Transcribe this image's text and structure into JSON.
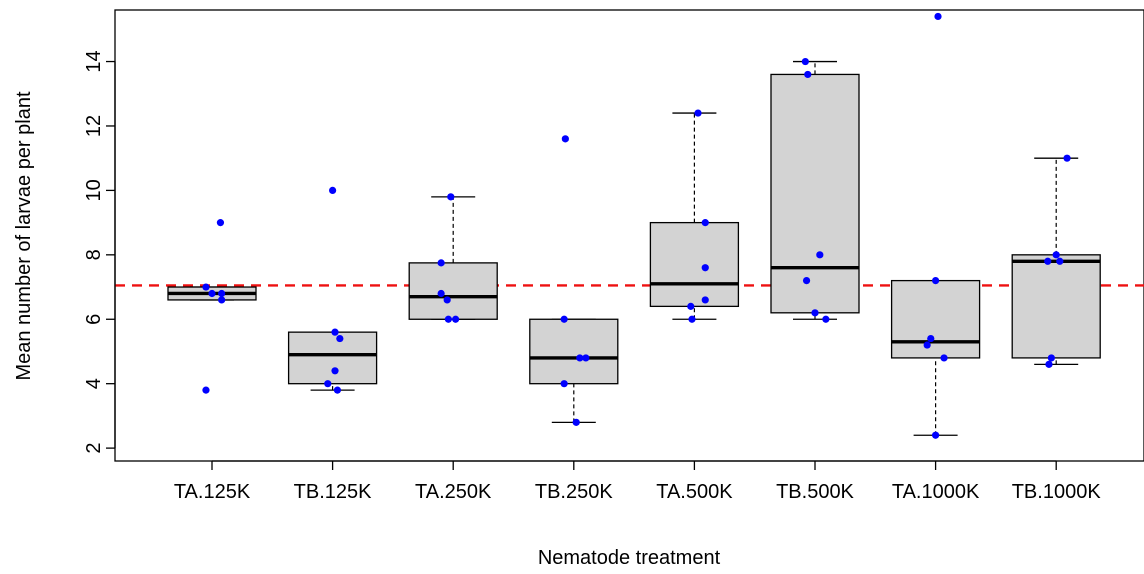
{
  "chart_data": {
    "type": "boxplot",
    "xlabel": "Nematode treatment",
    "ylabel": "Mean number of larvae per plant",
    "ylim": [
      1.6,
      15.6
    ],
    "yticks": [
      2,
      4,
      6,
      8,
      10,
      12,
      14
    ],
    "categories": [
      "TA.125K",
      "TB.125K",
      "TA.250K",
      "TB.250K",
      "TA.500K",
      "TB.500K",
      "TA.1000K",
      "TB.1000K"
    ],
    "boxes": [
      {
        "category": "TA.125K",
        "whisker_low": 6.6,
        "q1": 6.6,
        "median": 6.8,
        "q3": 7.0,
        "whisker_high": 7.0
      },
      {
        "category": "TB.125K",
        "whisker_low": 3.8,
        "q1": 4.0,
        "median": 4.9,
        "q3": 5.6,
        "whisker_high": 5.6
      },
      {
        "category": "TA.250K",
        "whisker_low": 6.0,
        "q1": 6.0,
        "median": 6.7,
        "q3": 7.75,
        "whisker_high": 9.8
      },
      {
        "category": "TB.250K",
        "whisker_low": 2.8,
        "q1": 4.0,
        "median": 4.8,
        "q3": 6.0,
        "whisker_high": 6.0
      },
      {
        "category": "TA.500K",
        "whisker_low": 6.0,
        "q1": 6.4,
        "median": 7.1,
        "q3": 9.0,
        "whisker_high": 12.4
      },
      {
        "category": "TB.500K",
        "whisker_low": 6.0,
        "q1": 6.2,
        "median": 7.6,
        "q3": 13.6,
        "whisker_high": 14.0
      },
      {
        "category": "TA.1000K",
        "whisker_low": 2.4,
        "q1": 4.8,
        "median": 5.3,
        "q3": 7.2,
        "whisker_high": 7.2
      },
      {
        "category": "TB.1000K",
        "whisker_low": 4.6,
        "q1": 4.8,
        "median": 7.8,
        "q3": 8.0,
        "whisker_high": 11.0
      }
    ],
    "points": [
      {
        "category": "TA.125K",
        "values": [
          3.8,
          7.0,
          6.8,
          6.6,
          6.8,
          9.0
        ],
        "jitter": [
          -0.05,
          -0.05,
          0.0,
          0.08,
          0.08,
          0.07
        ]
      },
      {
        "category": "TB.125K",
        "values": [
          10.0,
          5.6,
          5.4,
          4.4,
          4.0,
          3.8
        ],
        "jitter": [
          0.0,
          0.02,
          0.06,
          0.02,
          -0.04,
          0.04
        ]
      },
      {
        "category": "TA.250K",
        "values": [
          9.8,
          7.75,
          6.8,
          6.6,
          6.0,
          6.0
        ],
        "jitter": [
          -0.02,
          -0.1,
          -0.1,
          -0.05,
          -0.04,
          0.02
        ]
      },
      {
        "category": "TB.250K",
        "values": [
          11.6,
          6.0,
          4.8,
          4.8,
          4.0,
          2.8
        ],
        "jitter": [
          -0.07,
          -0.08,
          0.05,
          0.1,
          -0.08,
          0.02
        ]
      },
      {
        "category": "TA.500K",
        "values": [
          12.4,
          9.0,
          7.6,
          6.6,
          6.4,
          6.0
        ],
        "jitter": [
          0.03,
          0.09,
          0.09,
          0.09,
          -0.03,
          -0.02
        ]
      },
      {
        "category": "TB.500K",
        "values": [
          14.0,
          13.6,
          8.0,
          7.2,
          6.2,
          6.0
        ],
        "jitter": [
          -0.08,
          -0.06,
          0.04,
          -0.07,
          0.0,
          0.09
        ]
      },
      {
        "category": "TA.1000K",
        "values": [
          15.4,
          7.2,
          5.4,
          5.2,
          4.8,
          2.4
        ],
        "jitter": [
          0.02,
          0.0,
          -0.04,
          -0.07,
          0.07,
          0.0
        ]
      },
      {
        "category": "TB.1000K",
        "values": [
          11.0,
          8.0,
          7.8,
          7.8,
          4.8,
          4.6
        ],
        "jitter": [
          0.09,
          0.0,
          -0.07,
          0.03,
          -0.04,
          -0.06
        ]
      }
    ],
    "reference_line": {
      "y": 7.05,
      "style": "dashed",
      "color": "#ee1111"
    },
    "colors": {
      "box_fill": "#d3d3d3",
      "box_stroke": "#000000",
      "median": "#000000",
      "points": "#0000ff"
    },
    "grid": false,
    "legend": "none"
  }
}
